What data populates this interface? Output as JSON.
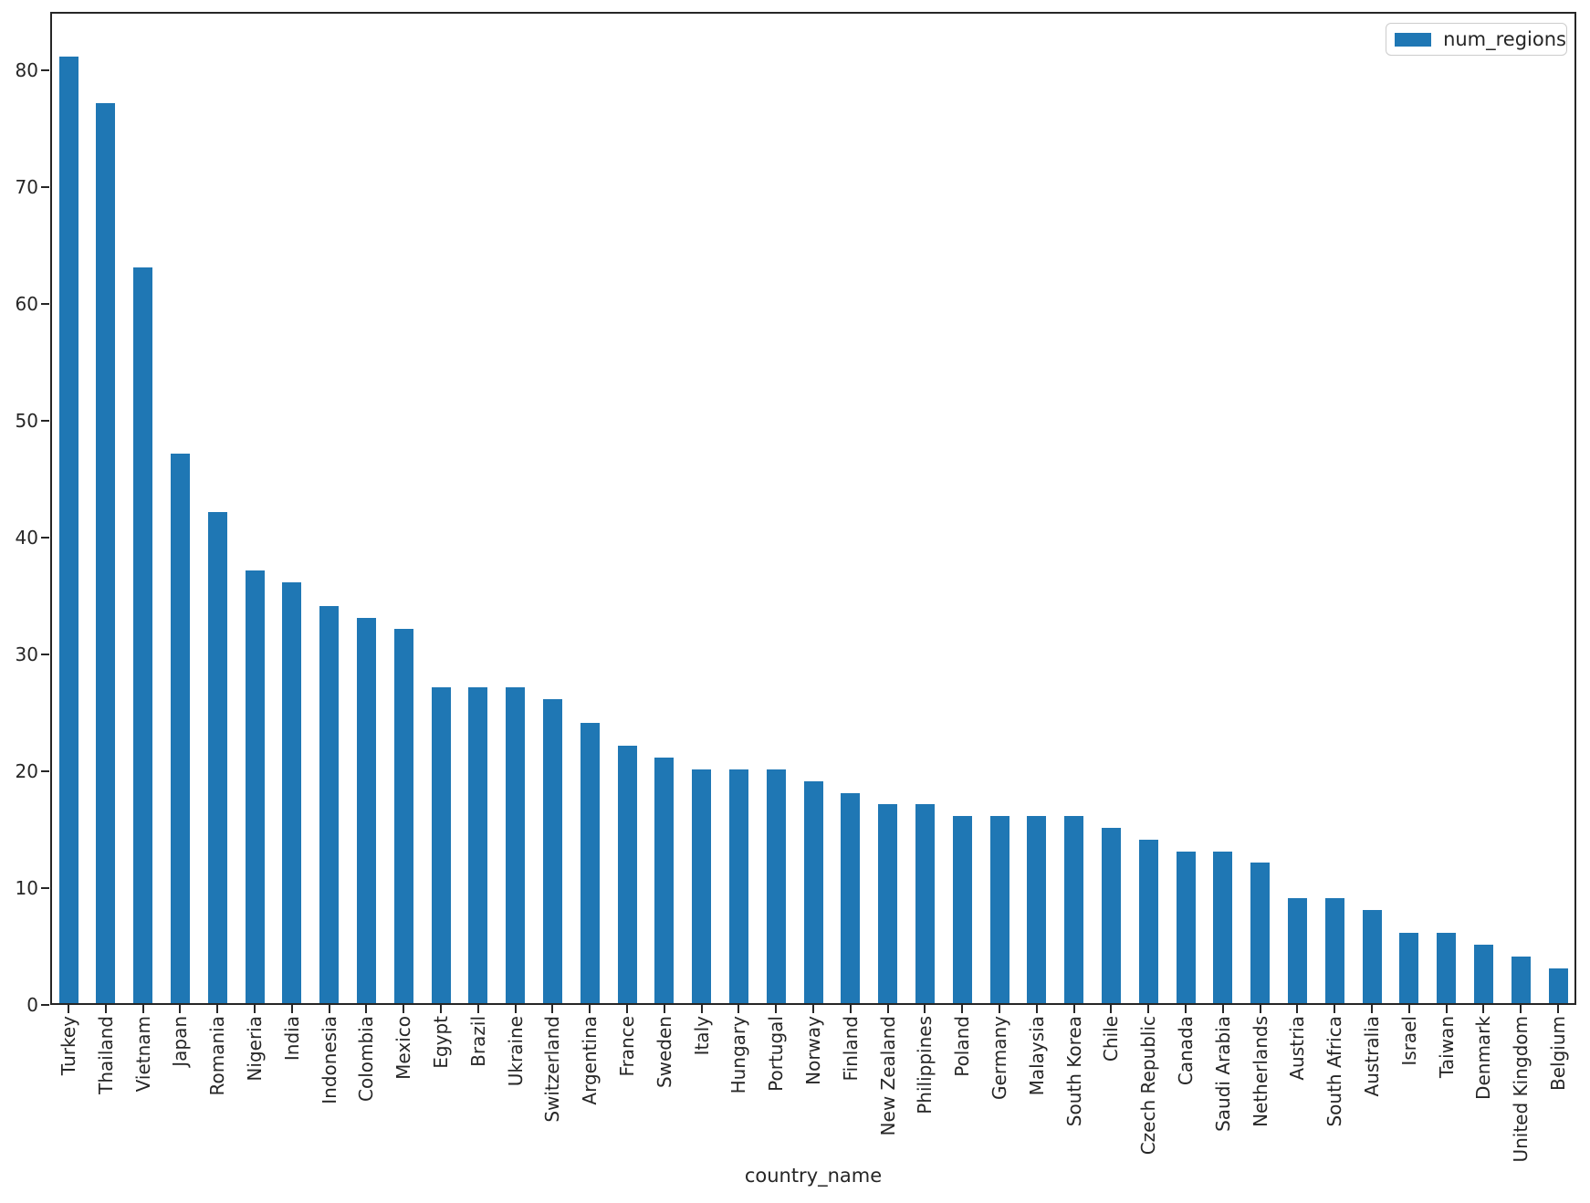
{
  "figure": {
    "background": "#ffffff",
    "bar_color": "#1f77b4",
    "spine_color": "#262626",
    "text_color": "#262626"
  },
  "legend": {
    "label": "num_regions"
  },
  "chart_data": {
    "type": "bar",
    "title": "",
    "xlabel": "country_name",
    "ylabel": "",
    "legend_position": "upper right",
    "grid": false,
    "ylim": [
      0,
      85
    ],
    "yticks": [
      0,
      10,
      20,
      30,
      40,
      50,
      60,
      70,
      80
    ],
    "categories": [
      "Turkey",
      "Thailand",
      "Vietnam",
      "Japan",
      "Romania",
      "Nigeria",
      "India",
      "Indonesia",
      "Colombia",
      "Mexico",
      "Egypt",
      "Brazil",
      "Ukraine",
      "Switzerland",
      "Argentina",
      "France",
      "Sweden",
      "Italy",
      "Hungary",
      "Portugal",
      "Norway",
      "Finland",
      "New Zealand",
      "Philippines",
      "Poland",
      "Germany",
      "Malaysia",
      "South Korea",
      "Chile",
      "Czech Republic",
      "Canada",
      "Saudi Arabia",
      "Netherlands",
      "Austria",
      "South Africa",
      "Australia",
      "Israel",
      "Taiwan",
      "Denmark",
      "United Kingdom",
      "Belgium"
    ],
    "series": [
      {
        "name": "num_regions",
        "values": [
          81,
          77,
          63,
          47,
          42,
          37,
          36,
          34,
          33,
          32,
          27,
          27,
          27,
          26,
          24,
          22,
          21,
          20,
          20,
          20,
          19,
          18,
          17,
          17,
          16,
          16,
          16,
          16,
          15,
          14,
          13,
          13,
          12,
          9,
          9,
          8,
          6,
          6,
          5,
          4,
          3
        ]
      }
    ]
  }
}
